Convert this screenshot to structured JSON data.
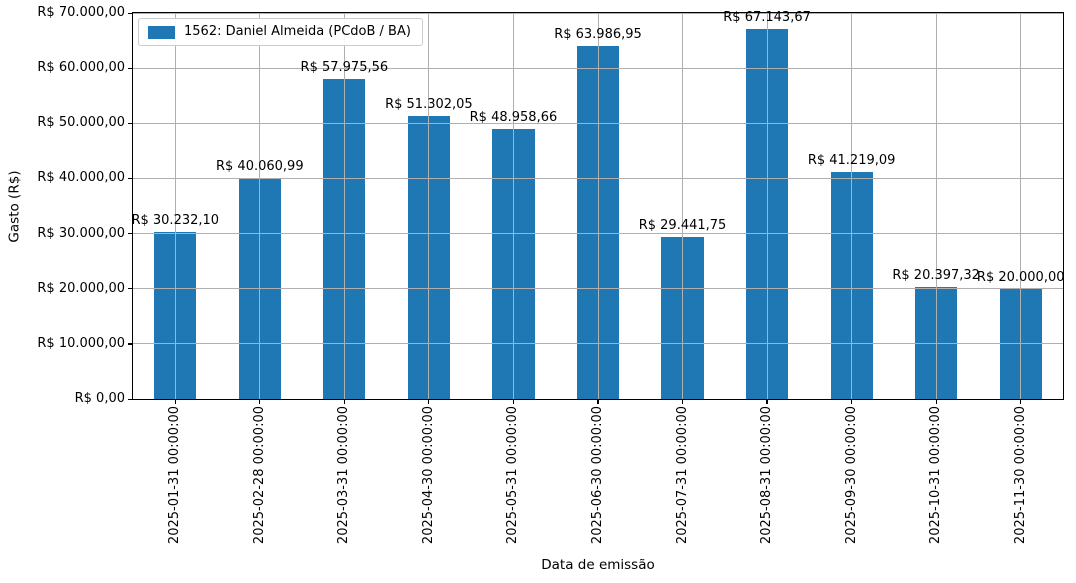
{
  "chart_data": {
    "type": "bar",
    "title": "",
    "xlabel": "Data de emissão",
    "ylabel": "Gasto (R$)",
    "legend": {
      "label": "1562: Daniel Almeida (PCdoB / BA)",
      "position": "upper-left"
    },
    "bar_color": "#1f77b4",
    "grid": true,
    "grid_color": "#b0b0b0",
    "axis_color": "#000000",
    "background": "#ffffff",
    "ylim": [
      0,
      70000
    ],
    "yticks": [
      0,
      10000,
      20000,
      30000,
      40000,
      50000,
      60000,
      70000
    ],
    "ytick_labels": [
      "R$ 0,00",
      "R$ 10.000,00",
      "R$ 20.000,00",
      "R$ 30.000,00",
      "R$ 40.000,00",
      "R$ 50.000,00",
      "R$ 60.000,00",
      "R$ 70.000,00"
    ],
    "categories": [
      "2025-01-31 00:00:00",
      "2025-02-28 00:00:00",
      "2025-03-31 00:00:00",
      "2025-04-30 00:00:00",
      "2025-05-31 00:00:00",
      "2025-06-30 00:00:00",
      "2025-07-31 00:00:00",
      "2025-08-31 00:00:00",
      "2025-09-30 00:00:00",
      "2025-10-31 00:00:00",
      "2025-11-30 00:00:00"
    ],
    "values": [
      30232.1,
      40060.99,
      57975.56,
      51302.05,
      48958.66,
      63986.95,
      29441.75,
      67143.67,
      41219.09,
      20397.32,
      20000.0
    ],
    "value_labels": [
      "R$ 30.232,10",
      "R$ 40.060,99",
      "R$ 57.975,56",
      "R$ 51.302,05",
      "R$ 48.958,66",
      "R$ 63.986,95",
      "R$ 29.441,75",
      "R$ 67.143,67",
      "R$ 41.219,09",
      "R$ 20.397,32",
      "R$ 20.000,00"
    ]
  }
}
